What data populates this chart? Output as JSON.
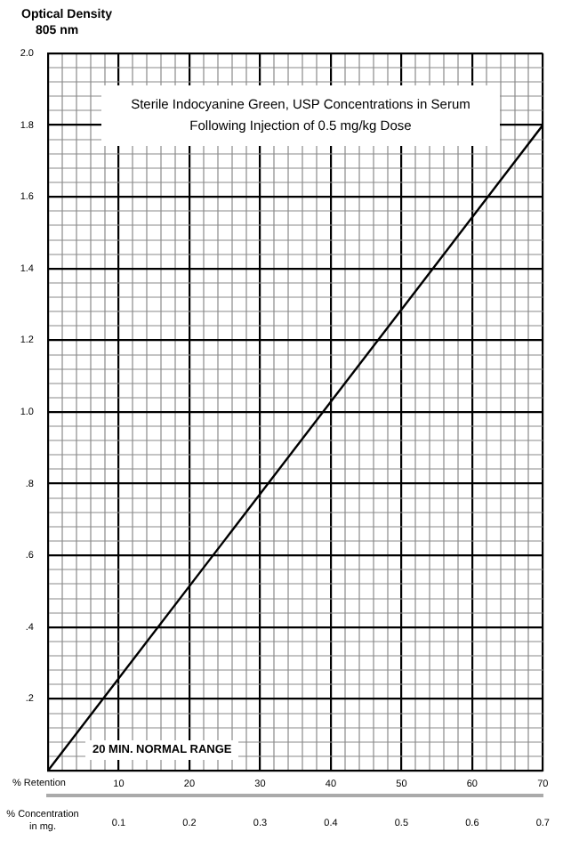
{
  "chart_data": {
    "type": "line",
    "title": "Sterile Indocyanine Green, USP Concentrations in Serum Following Injection of 0.5 mg/kg Dose",
    "ylabel": "Optical Density 805 nm",
    "xlabel": "% Retention",
    "x2label": "% Concentration in mg.",
    "annotations": [
      "20 MIN. NORMAL RANGE"
    ],
    "series": [
      {
        "color": "#000000",
        "x": [
          0,
          70
        ],
        "values": [
          0,
          1.8
        ]
      }
    ],
    "xlim": [
      0,
      70
    ],
    "xticks": [
      {
        "value": 0,
        "label": null
      },
      {
        "value": 2,
        "label": null
      },
      {
        "value": 4,
        "label": null
      },
      {
        "value": 6,
        "label": null
      },
      {
        "value": 8,
        "label": null
      },
      10,
      {
        "value": 12,
        "label": null
      },
      {
        "value": 14,
        "label": null
      },
      {
        "value": 16,
        "label": null
      },
      {
        "value": 18,
        "label": null
      },
      20,
      {
        "value": 22,
        "label": null
      },
      {
        "value": 24,
        "label": null
      },
      {
        "value": 26,
        "label": null
      },
      {
        "value": 28,
        "label": null
      },
      30,
      {
        "value": 32,
        "label": null
      },
      {
        "value": 34,
        "label": null
      },
      {
        "value": 36,
        "label": null
      },
      {
        "value": 38,
        "label": null
      },
      40,
      {
        "value": 42,
        "label": null
      },
      {
        "value": 44,
        "label": null
      },
      {
        "value": 46,
        "label": null
      },
      {
        "value": 48,
        "label": null
      },
      50,
      {
        "value": 52,
        "label": null
      },
      {
        "value": 54,
        "label": null
      },
      {
        "value": 56,
        "label": null
      },
      {
        "value": 58,
        "label": null
      },
      60,
      {
        "value": 62,
        "label": null
      },
      {
        "value": 64,
        "label": null
      },
      {
        "value": 66,
        "label": null
      },
      {
        "value": 68,
        "label": null
      },
      70
    ],
    "x2lim": [
      0,
      0.7
    ],
    "x2ticks": [
      0.1,
      0.2,
      0.3,
      0.4,
      0.5,
      0.6,
      0.7
    ],
    "ylim": [
      0,
      2
    ],
    "yticks": [
      {
        "value": 0,
        "label": null
      },
      {
        "value": 0.04,
        "label": null
      },
      {
        "value": 0.08,
        "label": null
      },
      {
        "value": 0.12,
        "label": null
      },
      {
        "value": 0.16,
        "label": null
      },
      {
        "value": 0.2,
        "label": ".2"
      },
      {
        "value": 0.24,
        "label": null
      },
      {
        "value": 0.28,
        "label": null
      },
      {
        "value": 0.32,
        "label": null
      },
      {
        "value": 0.36,
        "label": null
      },
      {
        "value": 0.4,
        "label": ".4"
      },
      {
        "value": 0.44,
        "label": null
      },
      {
        "value": 0.48,
        "label": null
      },
      {
        "value": 0.52,
        "label": null
      },
      {
        "value": 0.56,
        "label": null
      },
      {
        "value": 0.6,
        "label": ".6"
      },
      {
        "value": 0.64,
        "label": null
      },
      {
        "value": 0.68,
        "label": null
      },
      {
        "value": 0.72,
        "label": null
      },
      {
        "value": 0.76,
        "label": null
      },
      {
        "value": 0.8,
        "label": ".8"
      },
      {
        "value": 0.84,
        "label": null
      },
      {
        "value": 0.88,
        "label": null
      },
      {
        "value": 0.92,
        "label": null
      },
      {
        "value": 0.96,
        "label": null
      },
      {
        "value": 1,
        "label": "1.0"
      },
      {
        "value": 1.04,
        "label": null
      },
      {
        "value": 1.08,
        "label": null
      },
      {
        "value": 1.12,
        "label": null
      },
      {
        "value": 1.16,
        "label": null
      },
      1.2,
      {
        "value": 1.24,
        "label": null
      },
      {
        "value": 1.28,
        "label": null
      },
      {
        "value": 1.32,
        "label": null
      },
      {
        "value": 1.36,
        "label": null
      },
      1.4,
      {
        "value": 1.44,
        "label": null
      },
      {
        "value": 1.48,
        "label": null
      },
      {
        "value": 1.52,
        "label": null
      },
      {
        "value": 1.56,
        "label": null
      },
      1.6,
      {
        "value": 1.64,
        "label": null
      },
      {
        "value": 1.68,
        "label": null
      },
      {
        "value": 1.72,
        "label": null
      },
      {
        "value": 1.76,
        "label": null
      },
      1.8,
      {
        "value": 1.84,
        "label": null
      },
      {
        "value": 1.88,
        "label": null
      },
      {
        "value": 1.92,
        "label": null
      },
      {
        "value": 1.96,
        "label": null
      },
      {
        "value": 2,
        "label": "2.0"
      }
    ],
    "grid": true,
    "marker": "none",
    "line_style": "solid",
    "legend": false
  }
}
